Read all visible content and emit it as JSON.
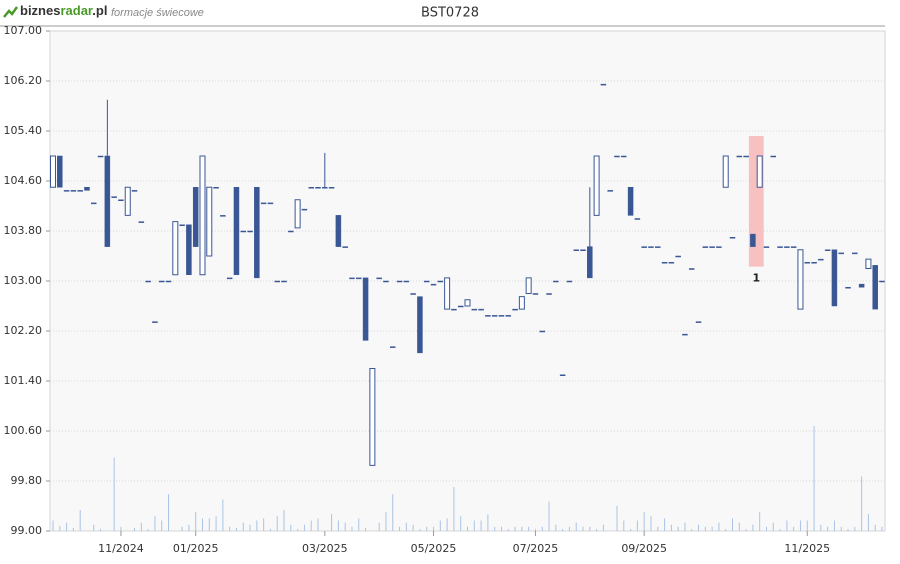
{
  "header": {
    "logo_a": "biznes",
    "logo_b": "radar",
    "logo_c": ".pl",
    "subtitle": "formacje świecowe"
  },
  "chart_data": {
    "type": "candlestick",
    "title": "BST0728",
    "ylim": [
      99.0,
      107.0
    ],
    "yticks": [
      {
        "value": 99.0,
        "label": "99.00"
      },
      {
        "value": 99.8,
        "label": "99.80"
      },
      {
        "value": 100.6,
        "label": "100.60"
      },
      {
        "value": 101.4,
        "label": "101.40"
      },
      {
        "value": 102.2,
        "label": "102.20"
      },
      {
        "value": 103.0,
        "label": "103.00"
      },
      {
        "value": 103.8,
        "label": "103.80"
      },
      {
        "value": 104.6,
        "label": "104.60"
      },
      {
        "value": 105.4,
        "label": "105.40"
      },
      {
        "value": 106.2,
        "label": "106.20"
      },
      {
        "value": 107.0,
        "label": "107.00"
      }
    ],
    "grid": true,
    "up_color": "#ffffff",
    "down_color": "#3a5795",
    "volume_color": "#a9c4e6",
    "highlight_color": "#f7b7b9",
    "categories": [
      null,
      null,
      null,
      null,
      null,
      null,
      null,
      null,
      null,
      null,
      "11/2024",
      null,
      null,
      null,
      null,
      null,
      null,
      null,
      null,
      null,
      null,
      "01/2025",
      null,
      null,
      null,
      null,
      null,
      null,
      null,
      null,
      null,
      null,
      null,
      null,
      null,
      null,
      null,
      null,
      null,
      null,
      "03/2025",
      null,
      null,
      null,
      null,
      null,
      null,
      null,
      null,
      null,
      null,
      null,
      null,
      null,
      null,
      null,
      "05/2025",
      null,
      null,
      null,
      null,
      null,
      null,
      null,
      null,
      null,
      null,
      null,
      null,
      null,
      null,
      "07/2025",
      null,
      null,
      null,
      null,
      null,
      null,
      null,
      null,
      null,
      null,
      null,
      null,
      null,
      null,
      null,
      "09/2025",
      null,
      null,
      null,
      null,
      null,
      null,
      null,
      null,
      null,
      null,
      null,
      null,
      null,
      null,
      null,
      null,
      null,
      null,
      null,
      null,
      null,
      null,
      null,
      "11/2025",
      null,
      null,
      null,
      null,
      null,
      null,
      null,
      null,
      null,
      null,
      null
    ],
    "ohlc": [
      [
        104.5,
        105.0,
        104.5,
        105.0
      ],
      [
        105.0,
        105.0,
        104.5,
        104.5
      ],
      [
        104.45,
        104.45,
        104.45,
        104.45
      ],
      [
        104.45,
        104.45,
        104.45,
        104.45
      ],
      [
        104.45,
        104.45,
        104.45,
        104.45
      ],
      [
        104.5,
        104.5,
        104.45,
        104.45
      ],
      [
        104.25,
        104.25,
        104.25,
        104.25
      ],
      [
        105.0,
        105.0,
        105.0,
        105.0
      ],
      [
        105.0,
        105.9,
        103.55,
        103.55
      ],
      [
        104.35,
        104.35,
        104.35,
        104.35
      ],
      [
        104.3,
        104.3,
        104.3,
        104.3
      ],
      [
        104.05,
        104.5,
        104.05,
        104.5
      ],
      [
        104.45,
        104.45,
        104.45,
        104.45
      ],
      [
        103.95,
        103.95,
        103.95,
        103.95
      ],
      [
        103.0,
        103.0,
        103.0,
        103.0
      ],
      [
        102.35,
        102.35,
        102.35,
        102.35
      ],
      [
        103.0,
        103.0,
        103.0,
        103.0
      ],
      [
        103.0,
        103.0,
        103.0,
        103.0
      ],
      [
        103.1,
        103.95,
        103.1,
        103.95
      ],
      [
        103.9,
        103.9,
        103.9,
        103.9
      ],
      [
        103.9,
        103.9,
        103.1,
        103.1
      ],
      [
        104.5,
        104.5,
        103.55,
        103.55
      ],
      [
        103.1,
        105.0,
        103.1,
        105.0
      ],
      [
        103.4,
        104.5,
        103.4,
        104.5
      ],
      [
        104.5,
        104.5,
        104.5,
        104.5
      ],
      [
        104.05,
        104.05,
        104.05,
        104.05
      ],
      [
        103.05,
        103.05,
        103.05,
        103.05
      ],
      [
        104.5,
        104.5,
        103.1,
        103.1
      ],
      [
        103.8,
        103.8,
        103.8,
        103.8
      ],
      [
        103.8,
        103.8,
        103.8,
        103.8
      ],
      [
        104.5,
        104.5,
        103.05,
        103.05
      ],
      [
        104.25,
        104.25,
        104.25,
        104.25
      ],
      [
        104.25,
        104.25,
        104.25,
        104.25
      ],
      [
        103.0,
        103.0,
        103.0,
        103.0
      ],
      [
        103.0,
        103.0,
        103.0,
        103.0
      ],
      [
        103.8,
        103.8,
        103.8,
        103.8
      ],
      [
        103.85,
        104.3,
        103.85,
        104.3
      ],
      [
        104.15,
        104.15,
        104.15,
        104.15
      ],
      [
        104.5,
        104.5,
        104.5,
        104.5
      ],
      [
        104.5,
        104.5,
        104.5,
        104.5
      ],
      [
        104.5,
        105.05,
        104.5,
        104.5
      ],
      [
        104.5,
        104.5,
        104.5,
        104.5
      ],
      [
        104.05,
        104.05,
        103.55,
        103.55
      ],
      [
        103.55,
        103.55,
        103.55,
        103.55
      ],
      [
        103.05,
        103.05,
        103.05,
        103.05
      ],
      [
        103.05,
        103.05,
        103.05,
        103.05
      ],
      [
        103.05,
        103.05,
        102.05,
        102.05
      ],
      [
        100.05,
        101.6,
        100.05,
        101.6
      ],
      [
        103.05,
        103.05,
        103.05,
        103.05
      ],
      [
        103.0,
        103.0,
        103.0,
        103.0
      ],
      [
        101.95,
        101.95,
        101.95,
        101.95
      ],
      [
        103.0,
        103.0,
        103.0,
        103.0
      ],
      [
        103.0,
        103.0,
        103.0,
        103.0
      ],
      [
        102.8,
        102.8,
        102.8,
        102.8
      ],
      [
        102.75,
        102.75,
        101.85,
        101.85
      ],
      [
        103.0,
        103.0,
        103.0,
        103.0
      ],
      [
        102.95,
        102.95,
        102.95,
        102.95
      ],
      [
        103.0,
        103.0,
        103.0,
        103.0
      ],
      [
        102.55,
        103.05,
        102.55,
        103.05
      ],
      [
        102.55,
        102.55,
        102.55,
        102.55
      ],
      [
        102.6,
        102.6,
        102.6,
        102.6
      ],
      [
        102.6,
        102.7,
        102.6,
        102.7
      ],
      [
        102.55,
        102.55,
        102.55,
        102.55
      ],
      [
        102.55,
        102.55,
        102.55,
        102.55
      ],
      [
        102.45,
        102.45,
        102.45,
        102.45
      ],
      [
        102.45,
        102.45,
        102.45,
        102.45
      ],
      [
        102.45,
        102.45,
        102.45,
        102.45
      ],
      [
        102.45,
        102.45,
        102.45,
        102.45
      ],
      [
        102.55,
        102.55,
        102.55,
        102.55
      ],
      [
        102.55,
        102.75,
        102.55,
        102.75
      ],
      [
        102.8,
        103.05,
        102.8,
        103.05
      ],
      [
        102.8,
        102.8,
        102.8,
        102.8
      ],
      [
        102.2,
        102.2,
        102.2,
        102.2
      ],
      [
        102.8,
        102.8,
        102.8,
        102.8
      ],
      [
        103.0,
        103.0,
        103.0,
        103.0
      ],
      [
        101.5,
        101.5,
        101.5,
        101.5
      ],
      [
        103.0,
        103.0,
        103.0,
        103.0
      ],
      [
        103.5,
        103.5,
        103.5,
        103.5
      ],
      [
        103.5,
        103.5,
        103.5,
        103.5
      ],
      [
        103.55,
        104.5,
        103.05,
        103.05
      ],
      [
        104.05,
        105.0,
        104.05,
        105.0
      ],
      [
        106.15,
        106.15,
        106.15,
        106.15
      ],
      [
        104.45,
        104.45,
        104.45,
        104.45
      ],
      [
        105.0,
        105.0,
        105.0,
        105.0
      ],
      [
        105.0,
        105.0,
        105.0,
        105.0
      ],
      [
        104.5,
        104.5,
        104.05,
        104.05
      ],
      [
        104.0,
        104.0,
        104.0,
        104.0
      ],
      [
        103.55,
        103.55,
        103.55,
        103.55
      ],
      [
        103.55,
        103.55,
        103.55,
        103.55
      ],
      [
        103.55,
        103.55,
        103.55,
        103.55
      ],
      [
        103.3,
        103.3,
        103.3,
        103.3
      ],
      [
        103.3,
        103.3,
        103.3,
        103.3
      ],
      [
        103.4,
        103.4,
        103.4,
        103.4
      ],
      [
        102.15,
        102.15,
        102.15,
        102.15
      ],
      [
        103.2,
        103.2,
        103.2,
        103.2
      ],
      [
        102.35,
        102.35,
        102.35,
        102.35
      ],
      [
        103.55,
        103.55,
        103.55,
        103.55
      ],
      [
        103.55,
        103.55,
        103.55,
        103.55
      ],
      [
        103.55,
        103.55,
        103.55,
        103.55
      ],
      [
        104.5,
        105.0,
        104.5,
        105.0
      ],
      [
        103.7,
        103.7,
        103.7,
        103.7
      ],
      [
        105.0,
        105.0,
        105.0,
        105.0
      ],
      [
        105.0,
        105.0,
        105.0,
        105.0
      ],
      [
        103.75,
        103.75,
        103.55,
        103.55
      ],
      [
        104.5,
        105.0,
        104.5,
        105.0
      ],
      [
        103.55,
        103.55,
        103.55,
        103.55
      ],
      [
        105.0,
        105.0,
        105.0,
        105.0
      ],
      [
        103.55,
        103.55,
        103.55,
        103.55
      ],
      [
        103.55,
        103.55,
        103.55,
        103.55
      ],
      [
        103.55,
        103.55,
        103.55,
        103.55
      ],
      [
        102.55,
        103.5,
        102.55,
        103.5
      ],
      [
        103.3,
        103.3,
        103.3,
        103.3
      ],
      [
        103.3,
        103.3,
        103.3,
        103.3
      ],
      [
        103.35,
        103.35,
        103.35,
        103.35
      ],
      [
        103.5,
        103.5,
        103.5,
        103.5
      ],
      [
        103.5,
        103.5,
        102.6,
        102.6
      ],
      [
        103.45,
        103.45,
        103.45,
        103.45
      ],
      [
        102.9,
        102.9,
        102.9,
        102.9
      ],
      [
        103.45,
        103.45,
        103.45,
        103.45
      ],
      [
        102.95,
        102.95,
        102.9,
        102.9
      ],
      [
        103.2,
        103.35,
        103.2,
        103.35
      ],
      [
        103.25,
        103.25,
        102.55,
        102.55
      ],
      [
        103.0,
        103.0,
        103.0,
        103.0
      ]
    ],
    "volume": [
      10,
      5,
      8,
      3,
      20,
      0,
      6,
      2,
      0,
      70,
      4,
      0,
      3,
      8,
      2,
      14,
      10,
      35,
      0,
      4,
      6,
      18,
      12,
      12,
      14,
      30,
      4,
      3,
      8,
      6,
      10,
      12,
      2,
      14,
      20,
      6,
      2,
      6,
      10,
      12,
      0,
      16,
      10,
      8,
      4,
      12,
      3,
      0,
      8,
      18,
      35,
      4,
      8,
      6,
      2,
      4,
      4,
      10,
      12,
      42,
      14,
      4,
      10,
      10,
      16,
      4,
      4,
      2,
      4,
      4,
      4,
      2,
      4,
      28,
      6,
      2,
      4,
      8,
      4,
      4,
      2,
      6,
      0,
      24,
      10,
      2,
      10,
      18,
      14,
      4,
      12,
      6,
      4,
      8,
      2,
      6,
      4,
      4,
      8,
      2,
      12,
      8,
      2,
      6,
      18,
      4,
      8,
      2,
      10,
      4,
      10,
      10,
      100,
      6,
      4,
      10,
      4,
      2,
      4,
      52,
      16,
      6,
      4
    ],
    "highlight": {
      "text": "1",
      "start": 103,
      "end": 104
    }
  }
}
